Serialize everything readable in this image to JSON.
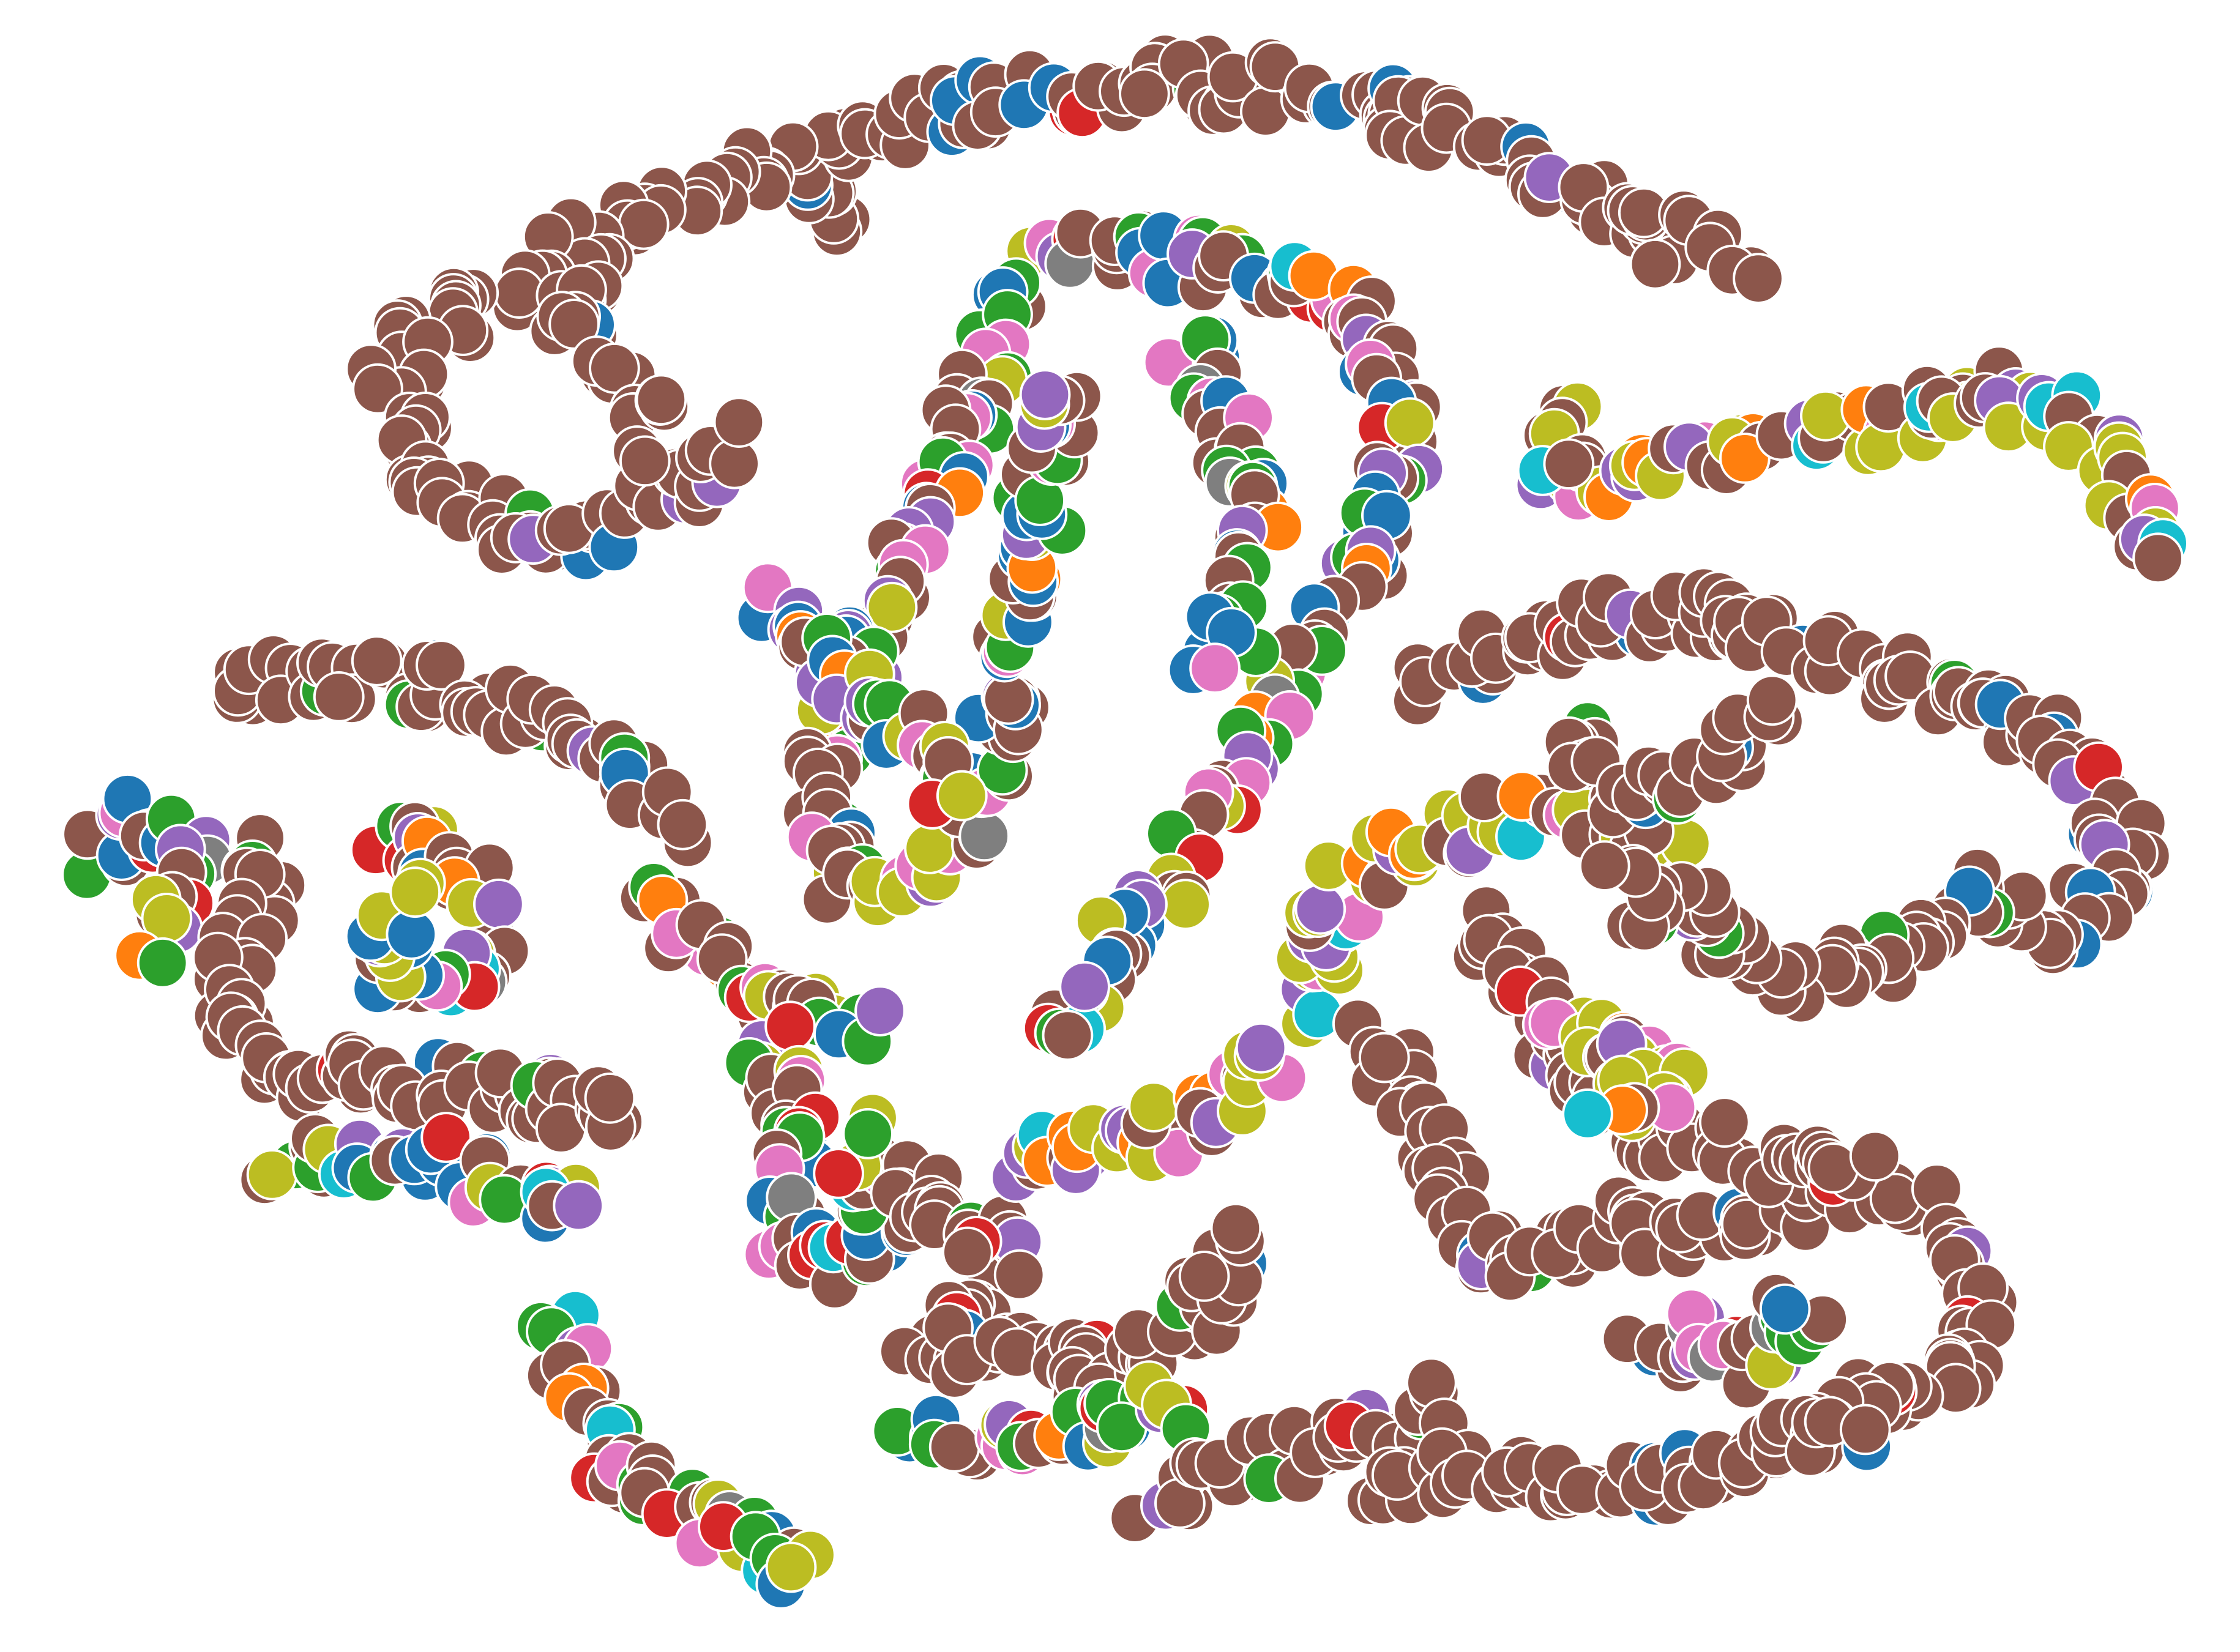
{
  "chart_data": {
    "type": "scatter",
    "title": "",
    "xlabel": "",
    "ylabel": "",
    "xlim": [
      0,
      1560
    ],
    "ylim": [
      1150,
      0
    ],
    "grid": false,
    "legend": "none",
    "axes_visible": false,
    "marker": "circle",
    "marker_edge": "#ffffff",
    "palette": {
      "brown": "#8c564b",
      "green": "#2ca02c",
      "blue": "#1f77b4",
      "purple": "#9467bd",
      "pink": "#e377c2",
      "olive": "#bcbd22",
      "red": "#d62728",
      "cyan": "#17becf",
      "orange": "#ff7f0e",
      "gray": "#7f7f7f"
    },
    "clusters": [
      {
        "name": "",
        "mix": "brown",
        "path": [
          [
            575,
            160
          ],
          [
            560,
            115
          ],
          [
            600,
            95
          ],
          [
            640,
            80
          ],
          [
            700,
            70
          ],
          [
            760,
            62
          ],
          [
            820,
            55
          ],
          [
            855,
            62
          ],
          [
            900,
            60
          ],
          [
            960,
            75
          ],
          [
            1020,
            95
          ],
          [
            1060,
            115
          ],
          [
            1110,
            140
          ],
          [
            1160,
            165
          ],
          [
            1225,
            180
          ]
        ]
      },
      {
        "name": "",
        "mix": "brown",
        "path": [
          [
            545,
            108
          ],
          [
            490,
            135
          ],
          [
            430,
            160
          ],
          [
            380,
            185
          ],
          [
            330,
            210
          ],
          [
            290,
            235
          ],
          [
            275,
            270
          ],
          [
            285,
            310
          ],
          [
            315,
            345
          ],
          [
            370,
            375
          ],
          [
            430,
            370
          ],
          [
            480,
            340
          ],
          [
            520,
            305
          ]
        ]
      },
      {
        "name": "",
        "mix": "brown",
        "path": [
          [
            410,
            195
          ],
          [
            400,
            230
          ],
          [
            420,
            255
          ],
          [
            450,
            285
          ],
          [
            470,
            315
          ]
        ]
      },
      {
        "name": "",
        "mix": "olive",
        "path": [
          [
            1085,
            290
          ],
          [
            1090,
            340
          ],
          [
            1140,
            330
          ],
          [
            1190,
            320
          ],
          [
            1240,
            300
          ],
          [
            1285,
            305
          ],
          [
            1340,
            290
          ],
          [
            1390,
            275
          ],
          [
            1430,
            290
          ],
          [
            1465,
            320
          ],
          [
            1485,
            350
          ],
          [
            1495,
            390
          ]
        ]
      },
      {
        "name": "",
        "mix": "center",
        "path": [
          [
            730,
            175
          ],
          [
            780,
            170
          ],
          [
            830,
            185
          ],
          [
            880,
            190
          ],
          [
            925,
            205
          ],
          [
            960,
            240
          ],
          [
            975,
            290
          ],
          [
            970,
            340
          ],
          [
            950,
            390
          ],
          [
            920,
            440
          ],
          [
            890,
            490
          ],
          [
            860,
            540
          ],
          [
            830,
            590
          ],
          [
            800,
            630
          ],
          [
            770,
            670
          ],
          [
            745,
            700
          ],
          [
            720,
            715
          ]
        ]
      },
      {
        "name": "",
        "mix": "center",
        "path": [
          [
            700,
            200
          ],
          [
            690,
            250
          ],
          [
            670,
            300
          ],
          [
            650,
            350
          ],
          [
            620,
            400
          ],
          [
            600,
            450
          ],
          [
            580,
            500
          ],
          [
            575,
            550
          ],
          [
            580,
            600
          ],
          [
            610,
            630
          ],
          [
            650,
            610
          ],
          [
            680,
            560
          ],
          [
            700,
            500
          ],
          [
            710,
            440
          ],
          [
            720,
            380
          ],
          [
            730,
            320
          ],
          [
            740,
            260
          ]
        ]
      },
      {
        "name": "",
        "mix": "center",
        "path": [
          [
            540,
            420
          ],
          [
            560,
            460
          ],
          [
            600,
            490
          ],
          [
            640,
            520
          ],
          [
            660,
            560
          ]
        ]
      },
      {
        "name": "",
        "mix": "center",
        "path": [
          [
            830,
            240
          ],
          [
            860,
            300
          ],
          [
            880,
            360
          ],
          [
            870,
            420
          ],
          [
            840,
            470
          ]
        ]
      },
      {
        "name": "",
        "mix": "brown",
        "path": [
          [
            150,
            485
          ],
          [
            210,
            470
          ],
          [
            270,
            475
          ],
          [
            330,
            480
          ],
          [
            385,
            500
          ],
          [
            430,
            525
          ],
          [
            460,
            560
          ],
          [
            470,
            580
          ]
        ]
      },
      {
        "name": "",
        "mix": "mixed",
        "path": [
          [
            70,
            600
          ],
          [
            100,
            570
          ],
          [
            140,
            590
          ],
          [
            120,
            640
          ],
          [
            90,
            660
          ]
        ]
      },
      {
        "name": "",
        "mix": "brown",
        "path": [
          [
            185,
            600
          ],
          [
            170,
            650
          ],
          [
            160,
            700
          ],
          [
            175,
            740
          ],
          [
            215,
            750
          ],
          [
            270,
            750
          ],
          [
            330,
            760
          ],
          [
            390,
            770
          ],
          [
            450,
            770
          ]
        ]
      },
      {
        "name": "",
        "mix": "mixed",
        "path": [
          [
            270,
            580
          ],
          [
            310,
            600
          ],
          [
            340,
            640
          ],
          [
            330,
            680
          ],
          [
            290,
            690
          ],
          [
            260,
            650
          ],
          [
            300,
            620
          ]
        ]
      },
      {
        "name": "",
        "mix": "mixed",
        "path": [
          [
            195,
            805
          ],
          [
            250,
            810
          ],
          [
            300,
            800
          ],
          [
            340,
            820
          ],
          [
            380,
            840
          ],
          [
            405,
            830
          ]
        ]
      },
      {
        "name": "",
        "mix": "mixed",
        "path": [
          [
            465,
            625
          ],
          [
            490,
            660
          ],
          [
            520,
            690
          ],
          [
            560,
            705
          ],
          [
            610,
            715
          ]
        ]
      },
      {
        "name": "",
        "mix": "mixed",
        "path": [
          [
            530,
            720
          ],
          [
            550,
            760
          ],
          [
            560,
            800
          ],
          [
            540,
            850
          ],
          [
            560,
            880
          ],
          [
            600,
            880
          ],
          [
            620,
            840
          ],
          [
            590,
            800
          ],
          [
            600,
            780
          ]
        ]
      },
      {
        "name": "",
        "mix": "brown",
        "path": [
          [
            630,
            820
          ],
          [
            660,
            860
          ],
          [
            700,
            870
          ],
          [
            680,
            900
          ],
          [
            640,
            930
          ],
          [
            690,
            945
          ],
          [
            740,
            950
          ],
          [
            790,
            960
          ],
          [
            820,
            930
          ],
          [
            850,
            890
          ],
          [
            860,
            850
          ]
        ]
      },
      {
        "name": "",
        "mix": "olive",
        "path": [
          [
            700,
            810
          ],
          [
            750,
            800
          ],
          [
            800,
            790
          ],
          [
            850,
            770
          ],
          [
            880,
            740
          ],
          [
            870,
            720
          ]
        ]
      },
      {
        "name": "",
        "mix": "mixed",
        "path": [
          [
            640,
            1000
          ],
          [
            680,
            1010
          ],
          [
            720,
            1005
          ],
          [
            760,
            995
          ],
          [
            800,
            985
          ],
          [
            830,
            975
          ]
        ]
      },
      {
        "name": "",
        "mix": "brown",
        "path": [
          [
            800,
            1040
          ],
          [
            850,
            1025
          ],
          [
            900,
            1010
          ],
          [
            940,
            1000
          ],
          [
            980,
            990
          ],
          [
            1010,
            970
          ]
        ]
      },
      {
        "name": "",
        "mix": "olive",
        "path": [
          [
            910,
            700
          ],
          [
            920,
            650
          ],
          [
            940,
            610
          ],
          [
            990,
            590
          ],
          [
            1040,
            570
          ],
          [
            1090,
            560
          ],
          [
            1130,
            575
          ],
          [
            1170,
            590
          ]
        ]
      },
      {
        "name": "",
        "mix": "brown",
        "path": [
          [
            990,
            480
          ],
          [
            1040,
            460
          ],
          [
            1100,
            440
          ],
          [
            1150,
            425
          ],
          [
            1200,
            430
          ],
          [
            1260,
            450
          ],
          [
            1320,
            470
          ],
          [
            1380,
            490
          ],
          [
            1430,
            515
          ],
          [
            1460,
            550
          ],
          [
            1480,
            590
          ],
          [
            1460,
            630
          ],
          [
            1420,
            650
          ],
          [
            1380,
            620
          ],
          [
            1340,
            650
          ],
          [
            1300,
            670
          ],
          [
            1250,
            680
          ],
          [
            1210,
            660
          ],
          [
            1180,
            630
          ],
          [
            1150,
            640
          ],
          [
            1120,
            610
          ]
        ]
      },
      {
        "name": "",
        "mix": "brown",
        "path": [
          [
            1100,
            505
          ],
          [
            1110,
            540
          ],
          [
            1140,
            560
          ],
          [
            1180,
            545
          ],
          [
            1210,
            515
          ],
          [
            1240,
            500
          ]
        ]
      },
      {
        "name": "",
        "mix": "brown",
        "path": [
          [
            960,
            715
          ],
          [
            980,
            760
          ],
          [
            1000,
            800
          ],
          [
            1010,
            840
          ],
          [
            1030,
            870
          ],
          [
            1060,
            880
          ],
          [
            1090,
            870
          ],
          [
            1120,
            850
          ],
          [
            1160,
            860
          ],
          [
            1200,
            850
          ],
          [
            1250,
            840
          ],
          [
            1300,
            820
          ],
          [
            1340,
            840
          ],
          [
            1370,
            880
          ],
          [
            1380,
            930
          ],
          [
            1350,
            960
          ],
          [
            1300,
            980
          ],
          [
            1260,
            1000
          ],
          [
            1240,
            1010
          ]
        ]
      },
      {
        "name": "",
        "mix": "brown",
        "path": [
          [
            1030,
            650
          ],
          [
            1060,
            690
          ],
          [
            1080,
            730
          ],
          [
            1110,
            760
          ],
          [
            1150,
            790
          ],
          [
            1200,
            790
          ],
          [
            1250,
            810
          ],
          [
            1300,
            820
          ]
        ]
      },
      {
        "name": "",
        "mix": "brown",
        "path": [
          [
            960,
            1040
          ],
          [
            1010,
            1030
          ],
          [
            1060,
            1020
          ],
          [
            1110,
            1040
          ],
          [
            1160,
            1030
          ],
          [
            1210,
            1020
          ],
          [
            1260,
            1000
          ],
          [
            1300,
            990
          ]
        ]
      },
      {
        "name": "",
        "mix": "mixed",
        "path": [
          [
            1150,
            940
          ],
          [
            1190,
            930
          ],
          [
            1220,
            950
          ],
          [
            1250,
            920
          ],
          [
            1260,
            900
          ]
        ]
      },
      {
        "name": "",
        "mix": "mixed",
        "path": [
          [
            390,
            930
          ],
          [
            410,
            980
          ],
          [
            430,
            1020
          ],
          [
            470,
            1050
          ],
          [
            510,
            1070
          ],
          [
            545,
            1090
          ],
          [
            570,
            1105
          ]
        ]
      },
      {
        "name": "",
        "mix": "olive",
        "path": [
          [
            1090,
            720
          ],
          [
            1130,
            730
          ],
          [
            1160,
            745
          ],
          [
            1150,
            770
          ],
          [
            1110,
            760
          ]
        ]
      }
    ]
  }
}
